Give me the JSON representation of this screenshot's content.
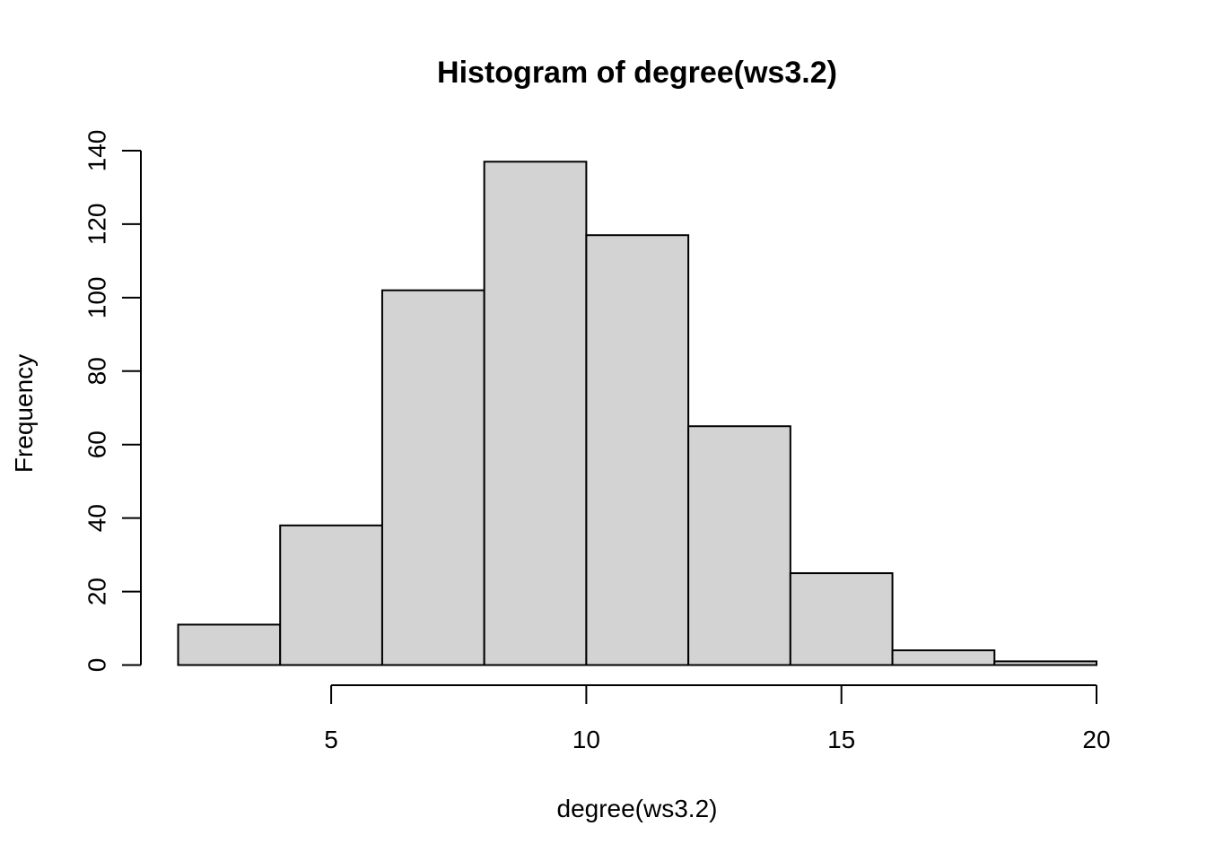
{
  "chart_data": {
    "type": "bar",
    "subtype": "histogram",
    "title": "Histogram of degree(ws3.2)",
    "xlabel": "degree(ws3.2)",
    "ylabel": "Frequency",
    "bin_edges": [
      2,
      4,
      6,
      8,
      10,
      12,
      14,
      16,
      18,
      20
    ],
    "values": [
      11,
      38,
      102,
      137,
      117,
      65,
      25,
      4,
      1
    ],
    "x_ticks": [
      "5",
      "10",
      "15",
      "20"
    ],
    "y_ticks": [
      "0",
      "20",
      "40",
      "60",
      "80",
      "100",
      "120",
      "140"
    ],
    "x_axis_range": [
      5,
      20
    ],
    "y_axis_range": [
      0,
      140
    ],
    "grid": false,
    "legend": "none",
    "bar_fill": "#d3d3d3",
    "bar_stroke": "#000000"
  }
}
